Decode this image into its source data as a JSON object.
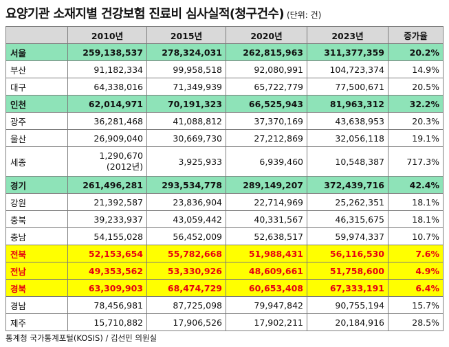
{
  "title": {
    "main": "요양기관 소재지별 건강보험 진료비 심사실적(청구건수)",
    "unit": "(단위: 건)"
  },
  "table": {
    "headers": [
      "",
      "2010년",
      "2015년",
      "2020년",
      "2023년",
      "증가율"
    ],
    "rows": [
      {
        "region": "서울",
        "y2010": "259,138,537",
        "y2015": "278,324,031",
        "y2020": "262,815,963",
        "y2023": "311,377,359",
        "rate": "20.2%"
      },
      {
        "region": "부산",
        "y2010": "91,182,334",
        "y2015": "99,958,518",
        "y2020": "92,080,991",
        "y2023": "104,723,374",
        "rate": "14.9%"
      },
      {
        "region": "대구",
        "y2010": "64,338,016",
        "y2015": "71,349,939",
        "y2020": "65,722,779",
        "y2023": "77,500,671",
        "rate": "20.5%"
      },
      {
        "region": "인천",
        "y2010": "62,014,971",
        "y2015": "70,191,323",
        "y2020": "66,525,943",
        "y2023": "81,963,312",
        "rate": "32.2%"
      },
      {
        "region": "광주",
        "y2010": "36,281,468",
        "y2015": "41,088,812",
        "y2020": "37,370,169",
        "y2023": "43,638,953",
        "rate": "20.3%"
      },
      {
        "region": "울산",
        "y2010": "26,909,040",
        "y2015": "30,669,730",
        "y2020": "27,212,869",
        "y2023": "32,056,118",
        "rate": "19.1%"
      },
      {
        "region": "세종",
        "y2010": "1,290,670",
        "y2010_note": "(2012년)",
        "y2015": "3,925,933",
        "y2020": "6,939,460",
        "y2023": "10,548,387",
        "rate": "717.3%"
      },
      {
        "region": "경기",
        "y2010": "261,496,281",
        "y2015": "293,534,778",
        "y2020": "289,149,207",
        "y2023": "372,439,716",
        "rate": "42.4%"
      },
      {
        "region": "강원",
        "y2010": "21,392,587",
        "y2015": "23,836,904",
        "y2020": "22,714,969",
        "y2023": "25,262,351",
        "rate": "18.1%"
      },
      {
        "region": "충북",
        "y2010": "39,233,937",
        "y2015": "43,059,442",
        "y2020": "40,331,567",
        "y2023": "46,315,675",
        "rate": "18.1%"
      },
      {
        "region": "충남",
        "y2010": "54,155,028",
        "y2015": "56,452,009",
        "y2020": "52,638,517",
        "y2023": "59,974,337",
        "rate": "10.7%"
      },
      {
        "region": "전북",
        "y2010": "52,153,654",
        "y2015": "55,782,668",
        "y2020": "51,988,431",
        "y2023": "56,116,530",
        "rate": "7.6%"
      },
      {
        "region": "전남",
        "y2010": "49,353,562",
        "y2015": "53,330,926",
        "y2020": "48,609,661",
        "y2023": "51,758,600",
        "rate": "4.9%"
      },
      {
        "region": "경북",
        "y2010": "63,309,903",
        "y2015": "68,474,729",
        "y2020": "60,653,408",
        "y2023": "67,333,191",
        "rate": "6.4%"
      },
      {
        "region": "경남",
        "y2010": "78,456,981",
        "y2015": "87,725,098",
        "y2020": "79,947,842",
        "y2023": "90,755,194",
        "rate": "15.7%"
      },
      {
        "region": "제주",
        "y2010": "15,710,882",
        "y2015": "17,906,526",
        "y2020": "17,902,211",
        "y2023": "20,184,916",
        "rate": "28.5%"
      }
    ]
  },
  "colors": {
    "highlight_green": "#8ee3b8",
    "highlight_yellow": "#ffff00",
    "highlight_text_red": "#e60012",
    "header_gray": "#d9d9d9"
  },
  "footer": "통계청 국가통계포털(KOSIS) / 김선민 의원실"
}
